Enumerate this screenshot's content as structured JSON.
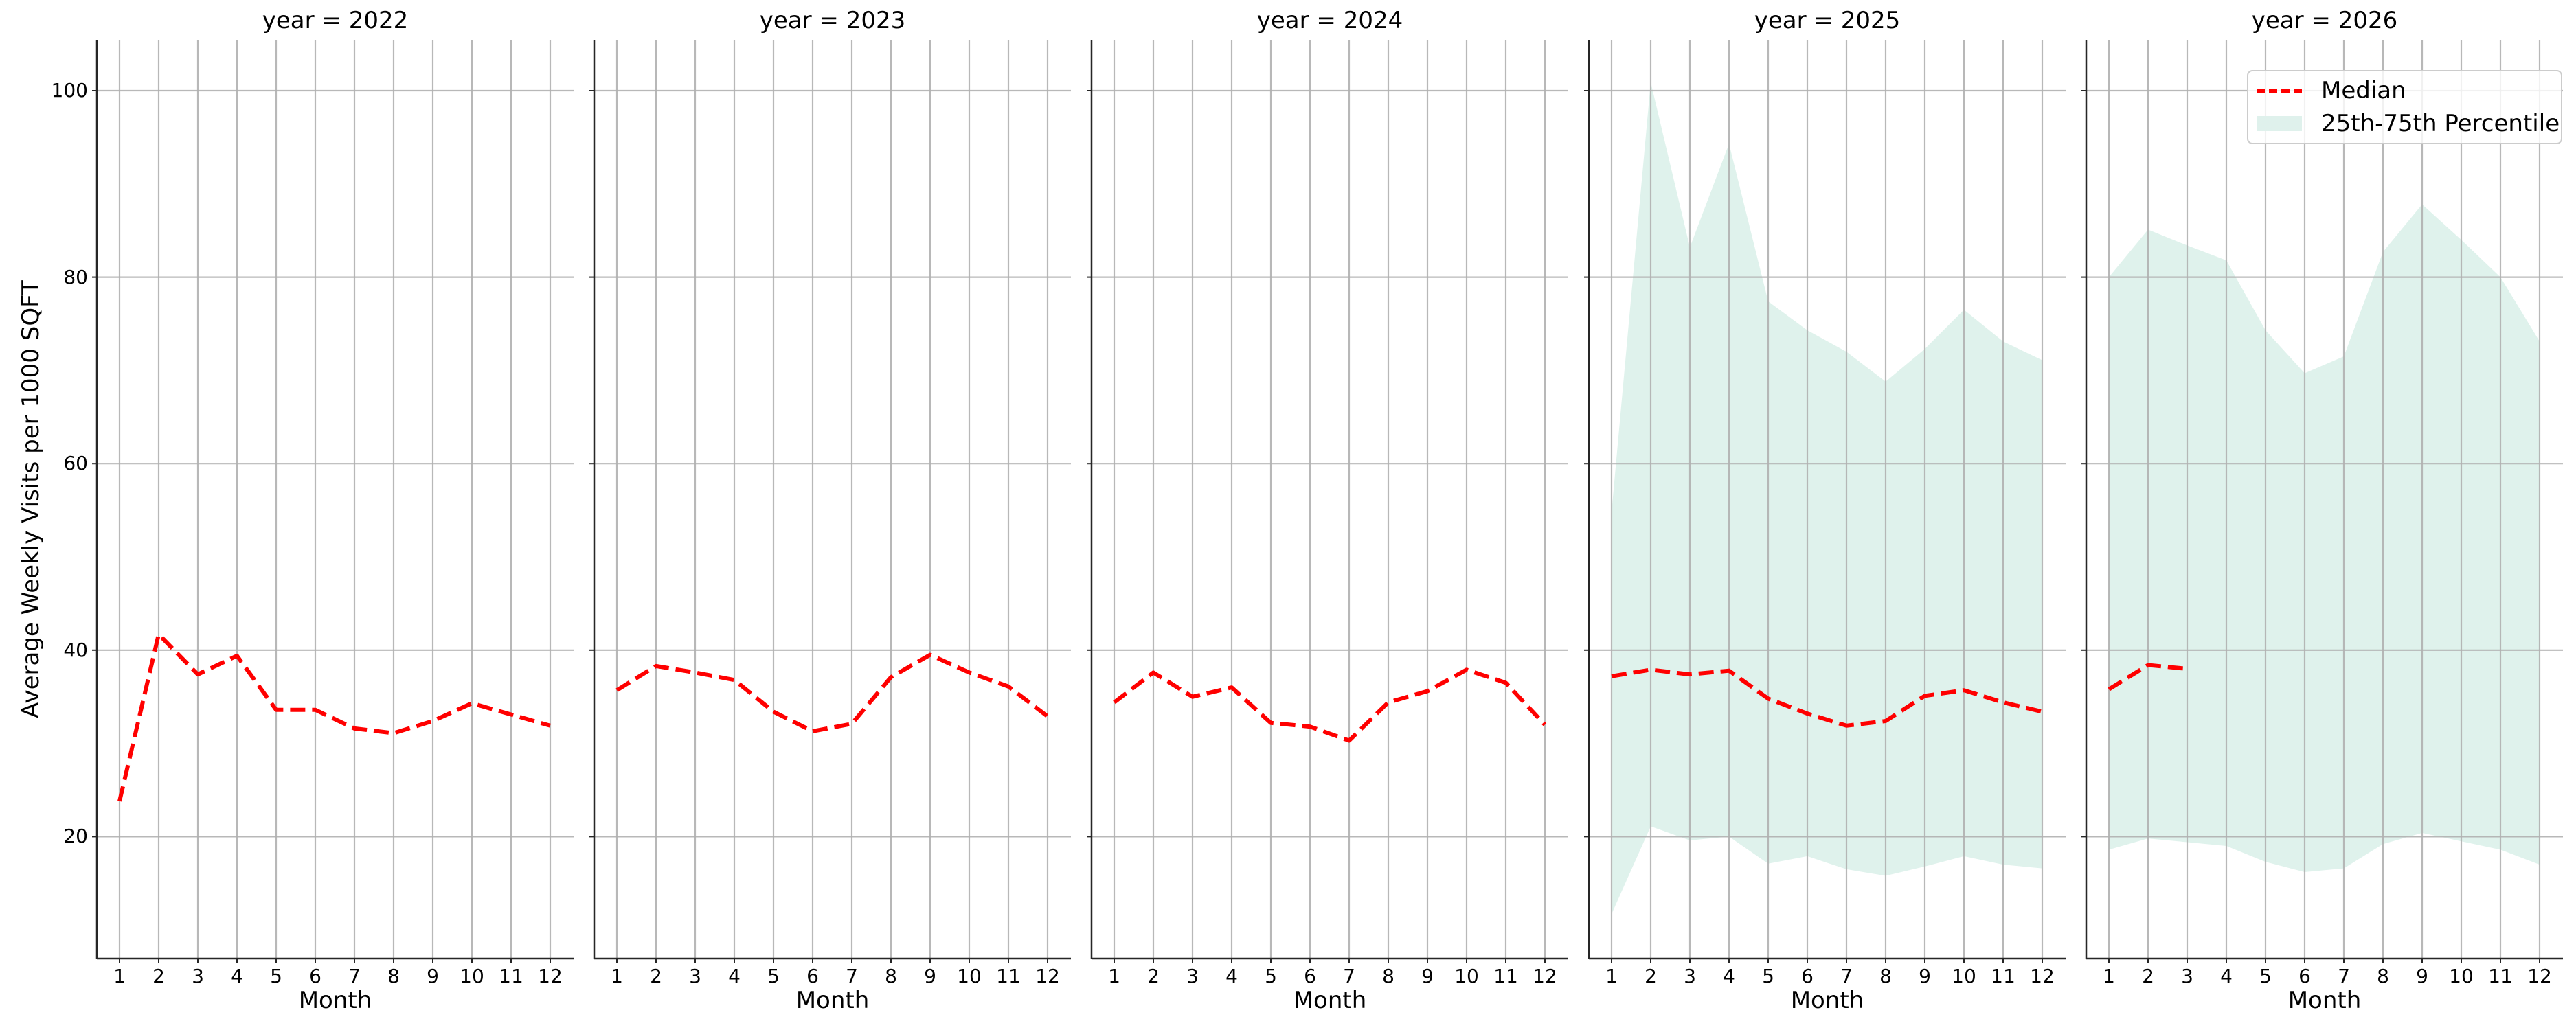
{
  "figure": {
    "ylabel": "Average Weekly Visits per 1000 SQFT",
    "xlabel": "Month",
    "yticks": [
      20,
      40,
      60,
      80,
      100
    ],
    "xticks": [
      1,
      2,
      3,
      4,
      5,
      6,
      7,
      8,
      9,
      10,
      11,
      12
    ],
    "colors": {
      "median": "#ff0000",
      "band": "#dff1ec",
      "grid": "#b0b0b0",
      "axis": "#262626"
    },
    "legend": {
      "median_label": "Median",
      "band_label": "25th-75th Percentile"
    },
    "panels": [
      {
        "title": "year = 2022"
      },
      {
        "title": "year = 2023"
      },
      {
        "title": "year = 2024"
      },
      {
        "title": "year = 2025"
      },
      {
        "title": "year = 2026"
      }
    ]
  },
  "chart_data": {
    "type": "line",
    "title": "",
    "facet": "year",
    "xlabel": "Month",
    "ylabel": "Average Weekly Visits per 1000 SQFT",
    "ylim": [
      7,
      105
    ],
    "xlim": [
      0.4,
      12.6
    ],
    "grid": true,
    "legend_position": "upper right (last panel)",
    "x": [
      1,
      2,
      3,
      4,
      5,
      6,
      7,
      8,
      9,
      10,
      11,
      12
    ],
    "panels": [
      {
        "year": 2022,
        "title": "year = 2022",
        "median": [
          23.8,
          41.7,
          37.4,
          39.4,
          33.6,
          33.6,
          31.6,
          31.1,
          32.4,
          34.3,
          33.1,
          31.9
        ],
        "p25": null,
        "p75": null
      },
      {
        "year": 2023,
        "title": "year = 2023",
        "median": [
          35.7,
          38.3,
          37.6,
          36.8,
          33.4,
          31.3,
          32.1,
          37.1,
          39.5,
          37.6,
          36.1,
          32.9
        ],
        "p25": null,
        "p75": null
      },
      {
        "year": 2024,
        "title": "year = 2024",
        "median": [
          34.4,
          37.6,
          35.0,
          36.0,
          32.2,
          31.8,
          30.3,
          34.4,
          35.6,
          37.9,
          36.5,
          32.0
        ],
        "p25": null,
        "p75": null
      },
      {
        "year": 2025,
        "title": "year = 2025",
        "median": [
          37.2,
          37.9,
          37.4,
          37.8,
          34.8,
          33.2,
          31.9,
          32.4,
          35.1,
          35.7,
          34.4,
          33.4
        ],
        "p25": [
          11.7,
          21.1,
          19.6,
          20.0,
          17.1,
          17.9,
          16.5,
          15.8,
          16.8,
          17.9,
          17.0,
          16.6
        ],
        "p75": [
          54.8,
          100.9,
          83.2,
          94.3,
          77.4,
          74.3,
          72.0,
          68.8,
          72.3,
          76.5,
          73.1,
          71.1
        ]
      },
      {
        "year": 2026,
        "title": "year = 2026",
        "median": [
          35.8,
          38.4,
          38.0,
          null,
          null,
          null,
          null,
          null,
          null,
          null,
          null,
          null
        ],
        "p25": [
          18.6,
          19.8,
          19.4,
          19.0,
          17.3,
          16.2,
          16.6,
          19.2,
          20.4,
          19.5,
          18.6,
          17.0
        ],
        "p75": [
          80.0,
          85.1,
          83.4,
          81.8,
          74.3,
          69.7,
          71.5,
          82.7,
          87.8,
          84.0,
          80.0,
          73.1
        ]
      }
    ],
    "series": [
      {
        "name": "Median",
        "style": "dashed red line"
      },
      {
        "name": "25th-75th Percentile",
        "style": "light teal filled band"
      }
    ]
  }
}
